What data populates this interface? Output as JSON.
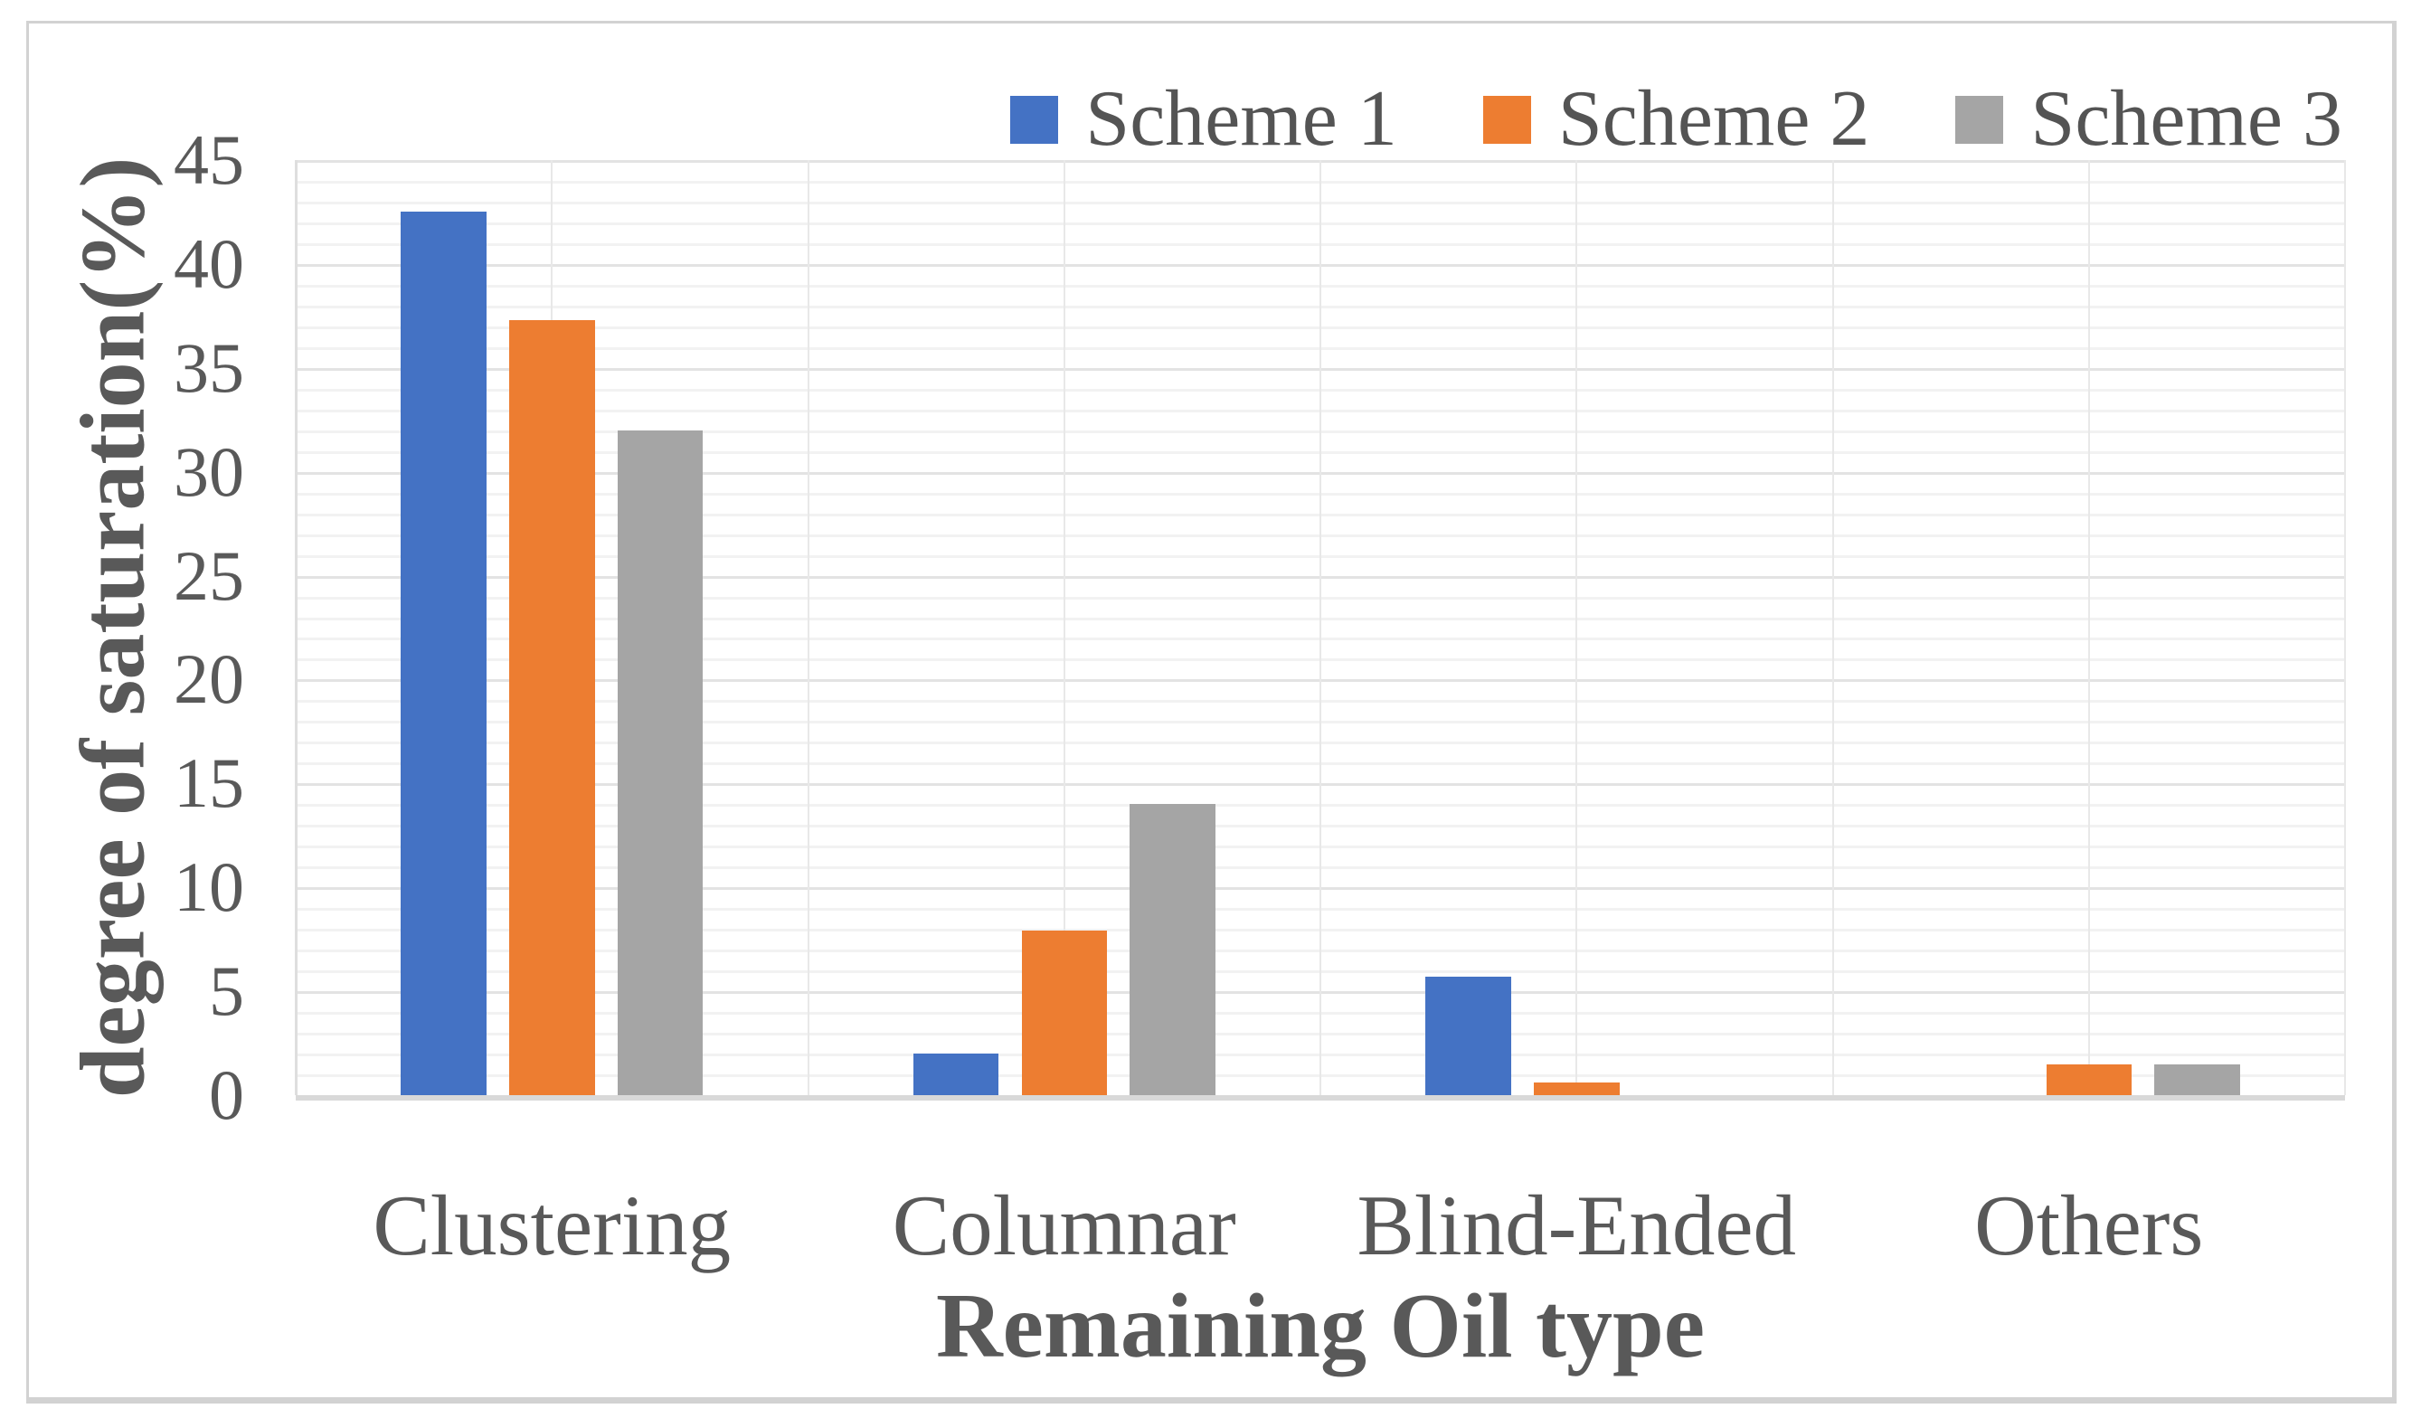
{
  "chart_data": {
    "type": "bar",
    "title": "",
    "categories": [
      "Clustering",
      "Columnar",
      "Blind-Ended",
      "Others"
    ],
    "series": [
      {
        "name": "Scheme 1",
        "color": "#4472C4",
        "values": [
          42.5,
          2.0,
          5.7,
          0
        ]
      },
      {
        "name": "Scheme 2",
        "color": "#ED7D31",
        "values": [
          37.3,
          7.9,
          0.6,
          1.5
        ]
      },
      {
        "name": "Scheme 3",
        "color": "#A5A5A5",
        "values": [
          32.0,
          14.0,
          0,
          1.5
        ]
      }
    ],
    "xlabel": "Remaining Oil type",
    "ylabel": "degree of saturation(%)",
    "ylim": [
      0,
      45
    ],
    "ytick_step": 5,
    "minor_ytick_step": 1,
    "x_grid_divisions": 8,
    "grid": true,
    "legend_position": "top-right"
  }
}
